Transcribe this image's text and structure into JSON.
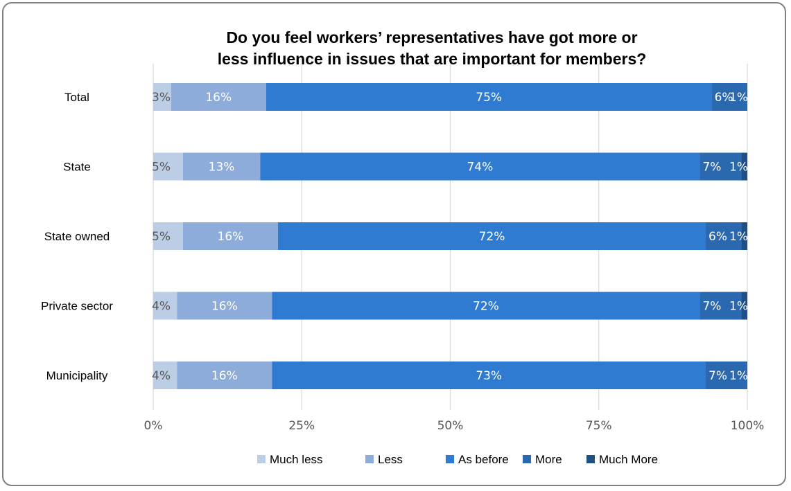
{
  "chart_data": {
    "type": "bar",
    "orientation": "horizontal",
    "stacked": true,
    "title": "Do you feel workers’ representatives have got more or less influence in issues that are important for members?",
    "title_lines": [
      "Do you feel workers’ representatives have got more or",
      "less influence in issues that are important for members?"
    ],
    "categories": [
      "Total",
      "State",
      "State owned",
      "Private sector",
      "Municipality"
    ],
    "series": [
      {
        "name": "Much less",
        "color": "#bccde6",
        "label_color": "#555555",
        "values": [
          3,
          5,
          5,
          4,
          4
        ]
      },
      {
        "name": "Less",
        "color": "#8eacd9",
        "label_color": "#ffffff",
        "values": [
          16,
          13,
          16,
          16,
          16
        ]
      },
      {
        "name": "As before",
        "color": "#2f7bd1",
        "label_color": "#ffffff",
        "values": [
          75,
          74,
          72,
          72,
          73
        ]
      },
      {
        "name": "More",
        "color": "#2a68b0",
        "label_color": "#ffffff",
        "values": [
          6,
          7,
          6,
          7,
          7
        ]
      },
      {
        "name": "Much More",
        "color": "#1e4f86",
        "label_color": "#ffffff",
        "values": [
          1,
          1,
          1,
          1,
          1
        ]
      }
    ],
    "data_labels": [
      [
        "3%",
        "16%",
        "75%",
        "6%",
        "1%"
      ],
      [
        "5%",
        "13%",
        "74%",
        "7%",
        "1%"
      ],
      [
        "5%",
        "16%",
        "72%",
        "6%",
        "1%"
      ],
      [
        "4%",
        "16%",
        "72%",
        "7%",
        "1%"
      ],
      [
        "4%",
        "16%",
        "73%",
        "7%",
        "1%"
      ]
    ],
    "xlim": [
      0,
      100
    ],
    "x_ticks": [
      0,
      25,
      50,
      75,
      100
    ],
    "x_tick_labels": [
      "0%",
      "25%",
      "50%",
      "75%",
      "100%"
    ],
    "grid": true,
    "legend_position": "bottom"
  }
}
